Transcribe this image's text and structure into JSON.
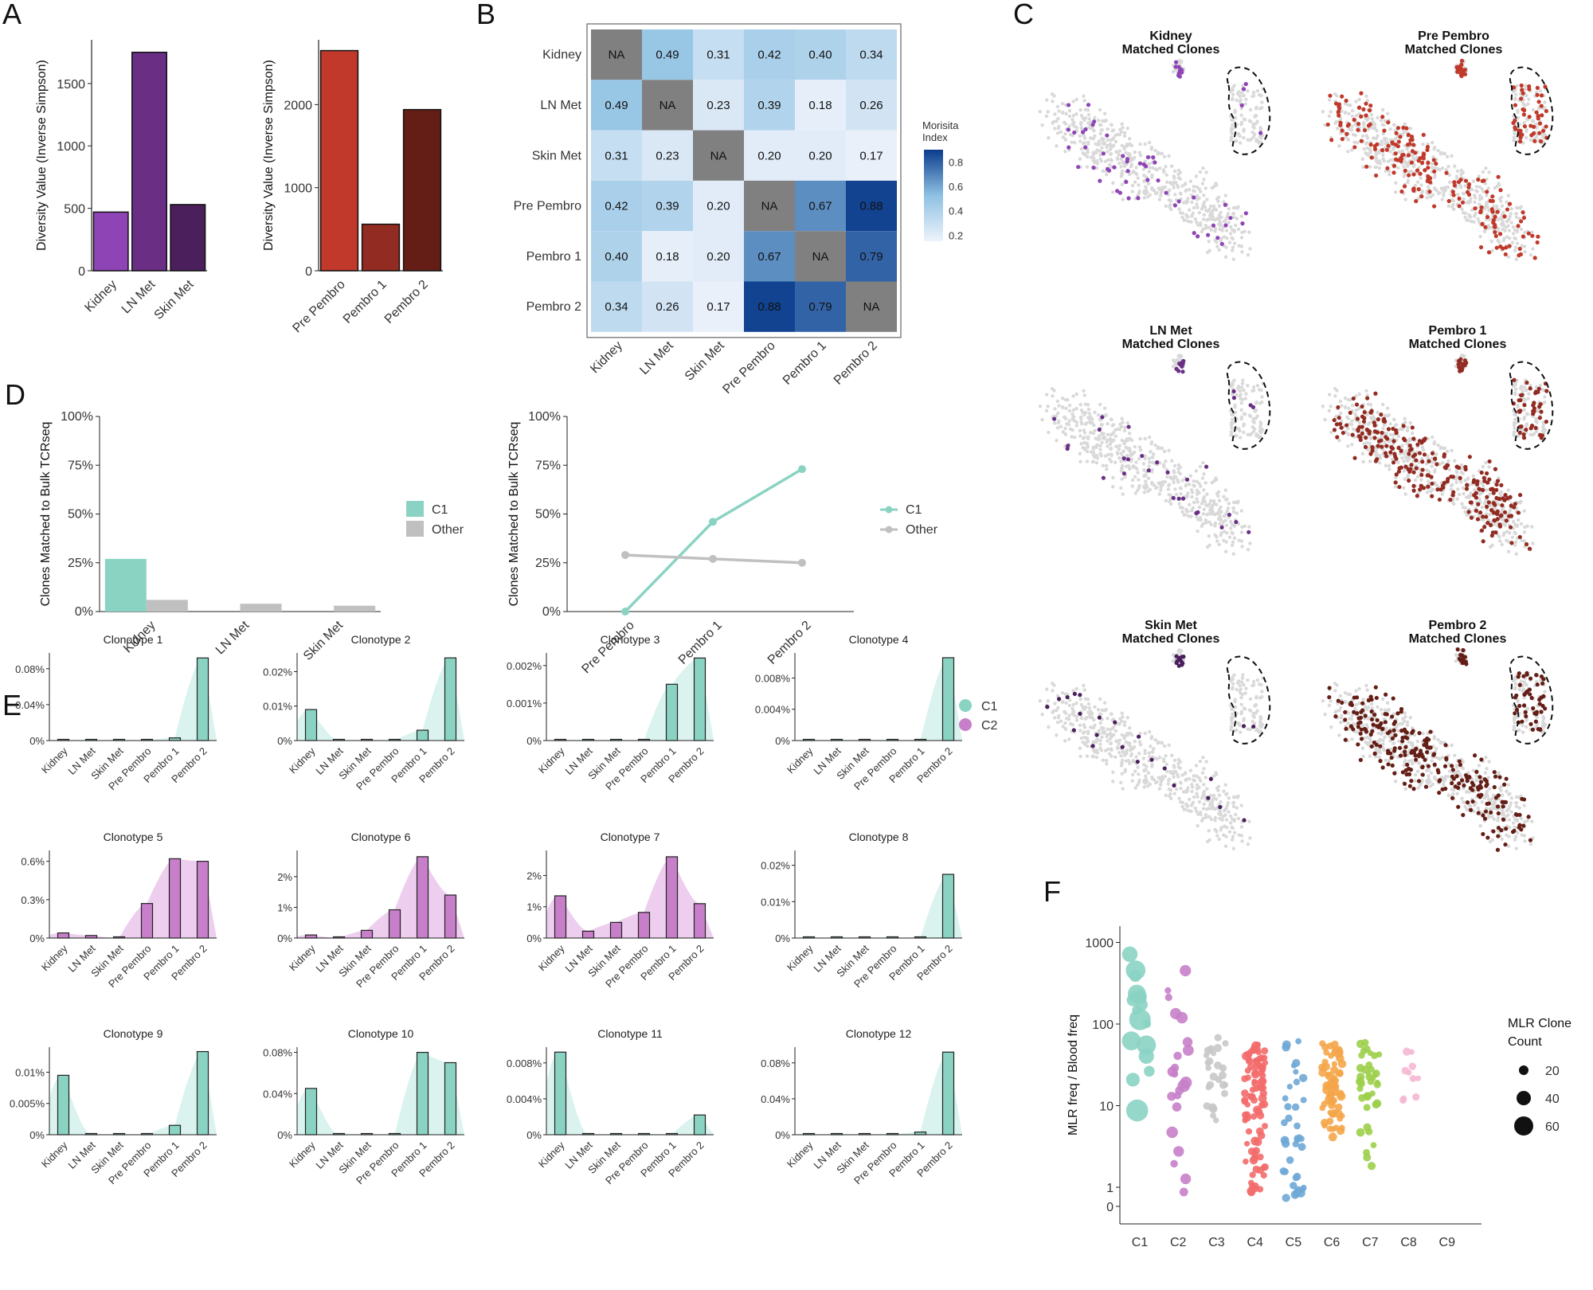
{
  "panels": {
    "a": "A",
    "b": "B",
    "c": "C",
    "d": "D",
    "e": "E",
    "f": "F"
  },
  "colors": {
    "kidney": "#8e44b5",
    "ln_met": "#6a2f85",
    "skin_met": "#4a1f5c",
    "pre_pembro": "#c0392b",
    "pembro1": "#922b21",
    "pembro2": "#641e16",
    "c1": "#8ad3c3",
    "c2": "#c77fc9",
    "other": "#c0c0c0",
    "umap_bg": "#d9d9d9"
  },
  "chart_data": [
    {
      "id": "A1",
      "type": "bar",
      "ylabel": "Diversity Value (Inverse Simpson)",
      "categories": [
        "Kidney",
        "LN Met",
        "Skin Met"
      ],
      "values": [
        470,
        1750,
        530
      ],
      "ylim": [
        0,
        1850
      ],
      "yticks": [
        "0",
        "500",
        "1000",
        "1500"
      ]
    },
    {
      "id": "A2",
      "type": "bar",
      "ylabel": "Diversity Value (Inverse Simpson)",
      "categories": [
        "Pre Pembro",
        "Pembro 1",
        "Pembro 2"
      ],
      "values": [
        2650,
        560,
        1940
      ],
      "ylim": [
        0,
        2780
      ],
      "yticks": [
        "0",
        "1000",
        "2000"
      ]
    },
    {
      "id": "B",
      "type": "heatmap",
      "legend_title": "Morisita\nIndex",
      "legend_ticks": [
        "0.8",
        "0.6",
        "0.4",
        "0.2"
      ],
      "rows": [
        "Kidney",
        "LN Met",
        "Skin Met",
        "Pre Pembro",
        "Pembro 1",
        "Pembro 2"
      ],
      "cols": [
        "Kidney",
        "LN Met",
        "Skin Met",
        "Pre Pembro",
        "Pembro 1",
        "Pembro 2"
      ],
      "values": [
        [
          "NA",
          "0.49",
          "0.31",
          "0.42",
          "0.40",
          "0.34"
        ],
        [
          "0.49",
          "NA",
          "0.23",
          "0.39",
          "0.18",
          "0.26"
        ],
        [
          "0.31",
          "0.23",
          "NA",
          "0.20",
          "0.20",
          "0.17"
        ],
        [
          "0.42",
          "0.39",
          "0.20",
          "NA",
          "0.67",
          "0.88"
        ],
        [
          "0.40",
          "0.18",
          "0.20",
          "0.67",
          "NA",
          "0.79"
        ],
        [
          "0.34",
          "0.26",
          "0.17",
          "0.88",
          "0.79",
          "NA"
        ]
      ]
    },
    {
      "id": "C",
      "type": "scatter",
      "titles": [
        [
          "Kidney",
          "Matched Clones"
        ],
        [
          "Pre Pembro",
          "Matched Clones"
        ],
        [
          "LN Met",
          "Matched Clones"
        ],
        [
          "Pembro 1",
          "Matched Clones"
        ],
        [
          "Skin Met",
          "Matched Clones"
        ],
        [
          "Pembro 2",
          "Matched Clones"
        ]
      ],
      "matched_counts": [
        55,
        240,
        30,
        290,
        25,
        300
      ]
    },
    {
      "id": "D1",
      "type": "bar",
      "ylabel": "Clones Matched to Bulk TCRseq",
      "categories": [
        "Kidney",
        "LN Met",
        "Skin Met"
      ],
      "series": [
        {
          "name": "C1",
          "values": [
            27,
            0,
            0
          ]
        },
        {
          "name": "Other",
          "values": [
            6,
            4,
            3
          ]
        }
      ],
      "yticks": [
        "0%",
        "25%",
        "50%",
        "75%",
        "100%"
      ],
      "ylim": [
        0,
        100
      ]
    },
    {
      "id": "D2",
      "type": "line",
      "ylabel": "Clones Matched to Bulk TCRseq",
      "categories": [
        "Pre Pembro",
        "Pembro 1",
        "Pembro 2"
      ],
      "series": [
        {
          "name": "C1",
          "values": [
            0,
            46,
            73
          ]
        },
        {
          "name": "Other",
          "values": [
            29,
            27,
            25
          ]
        }
      ],
      "yticks": [
        "0%",
        "25%",
        "50%",
        "75%",
        "100%"
      ],
      "ylim": [
        0,
        100
      ]
    },
    {
      "id": "E",
      "type": "bar",
      "legend": [
        "C1",
        "C2"
      ],
      "categories": [
        "Kidney",
        "LN Met",
        "Skin Met",
        "Pre Pembro",
        "Pembro 1",
        "Pembro 2"
      ],
      "panels": [
        {
          "title": "Clonotype 1",
          "group": "C1",
          "yticks": [
            "0%",
            "0.04%",
            "0.08%"
          ],
          "ymax": 0.094,
          "values": [
            0,
            0,
            0,
            0,
            0.003,
            0.092
          ]
        },
        {
          "title": "Clonotype 2",
          "group": "C1",
          "yticks": [
            "0%",
            "0.01%",
            "0.02%"
          ],
          "ymax": 0.0245,
          "values": [
            0.009,
            0,
            0,
            0,
            0.003,
            0.024
          ]
        },
        {
          "title": "Clonotype 3",
          "group": "C1",
          "yticks": [
            "0%",
            "0.001%",
            "0.002%"
          ],
          "ymax": 0.00225,
          "values": [
            0,
            0,
            0,
            0,
            0.0015,
            0.0022
          ]
        },
        {
          "title": "Clonotype 4",
          "group": "C1",
          "yticks": [
            "0%",
            "0.004%",
            "0.008%"
          ],
          "ymax": 0.0108,
          "values": [
            0,
            0,
            0,
            0,
            0,
            0.0106
          ]
        },
        {
          "title": "Clonotype 5",
          "group": "C2",
          "yticks": [
            "0%",
            "0.3%",
            "0.6%"
          ],
          "ymax": 0.66,
          "values": [
            0.04,
            0.02,
            0,
            0.27,
            0.62,
            0.6
          ]
        },
        {
          "title": "Clonotype 6",
          "group": "C2",
          "yticks": [
            "0%",
            "1%",
            "2%"
          ],
          "ymax": 2.75,
          "values": [
            0.1,
            0,
            0.25,
            0.92,
            2.65,
            1.4
          ]
        },
        {
          "title": "Clonotype 7",
          "group": "C2",
          "yticks": [
            "0%",
            "1%",
            "2%"
          ],
          "ymax": 2.7,
          "values": [
            1.35,
            0.22,
            0.5,
            0.82,
            2.6,
            1.1
          ]
        },
        {
          "title": "Clonotype 8",
          "group": "C1",
          "yticks": [
            "0%",
            "0.01%",
            "0.02%"
          ],
          "ymax": 0.0232,
          "values": [
            0,
            0,
            0,
            0,
            0,
            0.0175
          ]
        },
        {
          "title": "Clonotype 9",
          "group": "C1",
          "yticks": [
            "0%",
            "0.005%",
            "0.01%"
          ],
          "ymax": 0.0135,
          "values": [
            0.0095,
            0,
            0,
            0,
            0.0015,
            0.0133
          ]
        },
        {
          "title": "Clonotype 10",
          "group": "C1",
          "yticks": [
            "0%",
            "0.04%",
            "0.08%"
          ],
          "ymax": 0.082,
          "values": [
            0.045,
            0,
            0,
            0,
            0.08,
            0.07
          ]
        },
        {
          "title": "Clonotype 11",
          "group": "C1",
          "yticks": [
            "0%",
            "0.004%",
            "0.008%"
          ],
          "ymax": 0.0094,
          "values": [
            0.0092,
            0,
            0,
            0,
            0,
            0.0022
          ]
        },
        {
          "title": "Clonotype 12",
          "group": "C1",
          "yticks": [
            "0%",
            "0.04%",
            "0.08%"
          ],
          "ymax": 0.094,
          "values": [
            0,
            0,
            0,
            0,
            0.003,
            0.092
          ]
        }
      ]
    },
    {
      "id": "F",
      "type": "scatter",
      "ylabel": "MLR freq / Blood freq",
      "categories": [
        "C1",
        "C2",
        "C3",
        "C4",
        "C5",
        "C6",
        "C7",
        "C8",
        "C9"
      ],
      "yticks": [
        "0",
        "1",
        "10",
        "100",
        "1000"
      ],
      "colors": [
        "#8ad3c3",
        "#c77fc9",
        "#c8c8c8",
        "#f36b6b",
        "#6fa8d6",
        "#f5a64a",
        "#9ccf4a",
        "#f5b7d3",
        "#999999"
      ],
      "ranges": [
        [
          6.5,
          800
        ],
        [
          0.6,
          480
        ],
        [
          4,
          95
        ],
        [
          0.5,
          65
        ],
        [
          0,
          62
        ],
        [
          4,
          62
        ],
        [
          1.7,
          62
        ],
        [
          7,
          52
        ],
        null
      ],
      "counts": [
        18,
        22,
        26,
        90,
        40,
        70,
        40,
        10,
        0
      ],
      "size_legend_title": [
        "MLR Clone",
        "Count"
      ],
      "size_legend": [
        "20",
        "40",
        "60"
      ]
    }
  ]
}
